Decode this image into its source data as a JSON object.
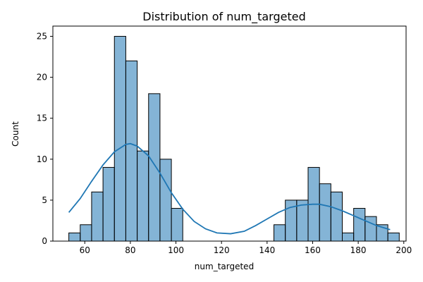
{
  "chart_data": {
    "type": "bar",
    "title": "Distribution of num_targeted",
    "xlabel": "num_targeted",
    "ylabel": "Count",
    "xlim": [
      46,
      201
    ],
    "ylim": [
      0,
      26.25
    ],
    "xticks": [
      60,
      80,
      100,
      120,
      140,
      160,
      180,
      200
    ],
    "yticks": [
      0,
      5,
      10,
      15,
      20,
      25
    ],
    "grid": false,
    "bar_color": "#1f77b4",
    "bars": [
      {
        "x0": 53.0,
        "x1": 58.0,
        "count": 1
      },
      {
        "x0": 58.0,
        "x1": 63.0,
        "count": 2
      },
      {
        "x0": 63.0,
        "x1": 68.0,
        "count": 6
      },
      {
        "x0": 68.0,
        "x1": 73.0,
        "count": 9
      },
      {
        "x0": 73.0,
        "x1": 78.0,
        "count": 25
      },
      {
        "x0": 78.0,
        "x1": 83.0,
        "count": 22
      },
      {
        "x0": 83.0,
        "x1": 88.0,
        "count": 11
      },
      {
        "x0": 88.0,
        "x1": 93.0,
        "count": 18
      },
      {
        "x0": 93.0,
        "x1": 98.0,
        "count": 10
      },
      {
        "x0": 98.0,
        "x1": 103.0,
        "count": 4
      },
      {
        "x0": 143.0,
        "x1": 148.0,
        "count": 2
      },
      {
        "x0": 148.0,
        "x1": 153.0,
        "count": 5
      },
      {
        "x0": 153.0,
        "x1": 158.0,
        "count": 5
      },
      {
        "x0": 158.0,
        "x1": 163.0,
        "count": 9
      },
      {
        "x0": 163.0,
        "x1": 168.0,
        "count": 7
      },
      {
        "x0": 168.0,
        "x1": 173.0,
        "count": 6
      },
      {
        "x0": 173.0,
        "x1": 178.0,
        "count": 1
      },
      {
        "x0": 178.0,
        "x1": 183.0,
        "count": 4
      },
      {
        "x0": 183.0,
        "x1": 188.0,
        "count": 3
      },
      {
        "x0": 188.0,
        "x1": 193.0,
        "count": 2
      },
      {
        "x0": 193.0,
        "x1": 198.0,
        "count": 1
      }
    ],
    "kde": {
      "color": "#1f77b4",
      "x": [
        53,
        58,
        63,
        68,
        73,
        78,
        80,
        83,
        88,
        93,
        98,
        103,
        108,
        113,
        118,
        124,
        130,
        135,
        140,
        145,
        150,
        155,
        160,
        163,
        168,
        173,
        178,
        183,
        188,
        194
      ],
      "y": [
        3.5,
        5.2,
        7.3,
        9.3,
        10.9,
        11.8,
        11.9,
        11.6,
        10.4,
        8.3,
        5.9,
        3.9,
        2.4,
        1.5,
        1.0,
        0.9,
        1.2,
        1.9,
        2.7,
        3.5,
        4.1,
        4.4,
        4.5,
        4.5,
        4.2,
        3.7,
        3.1,
        2.5,
        1.9,
        1.4
      ]
    }
  }
}
